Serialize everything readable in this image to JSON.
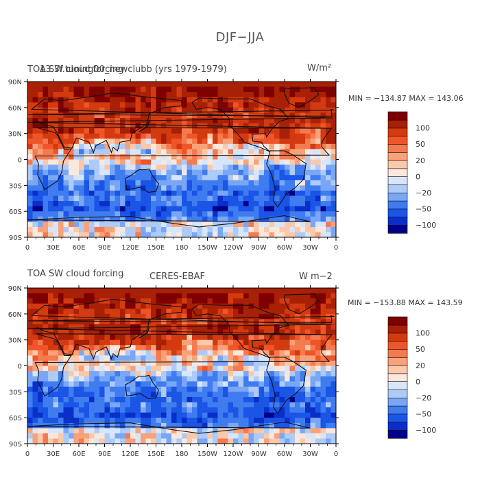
{
  "main_title": "DJF−JJA",
  "panels": [
    {
      "title_left": "TOA SW cloud forcing",
      "title_overlap": "13.3f.tuning00_newclubb (yrs 1979-1979)",
      "title_right": "W/m²",
      "stats": "MIN = −134.87 MAX = 143.06",
      "colorbar_labels": [
        "100",
        "50",
        "20",
        "0",
        "−20",
        "−50",
        "−100"
      ]
    },
    {
      "title_left": "TOA SW cloud forcing",
      "title_center": "CERES-EBAF",
      "title_right": "W m−2",
      "stats": "MIN = −153.88 MAX = 143.59",
      "colorbar_labels": [
        "100",
        "50",
        "20",
        "0",
        "−20",
        "−50",
        "−100"
      ]
    }
  ],
  "x_ticks": [
    "0",
    "30E",
    "60E",
    "90E",
    "120E",
    "150E",
    "180",
    "150W",
    "120W",
    "90W",
    "60W",
    "30W",
    "0"
  ],
  "y_ticks": [
    "90N",
    "60N",
    "30N",
    "0",
    "30S",
    "60S",
    "90S"
  ],
  "palette": [
    "#00008b",
    "#0a2ec8",
    "#1a55e6",
    "#3f7cf0",
    "#7aa7f5",
    "#aecbf7",
    "#d8e6fb",
    "#fbe8dc",
    "#fbc8aa",
    "#f9a27a",
    "#f67a4f",
    "#ef5528",
    "#d43a10",
    "#a82006",
    "#7f0000"
  ]
}
